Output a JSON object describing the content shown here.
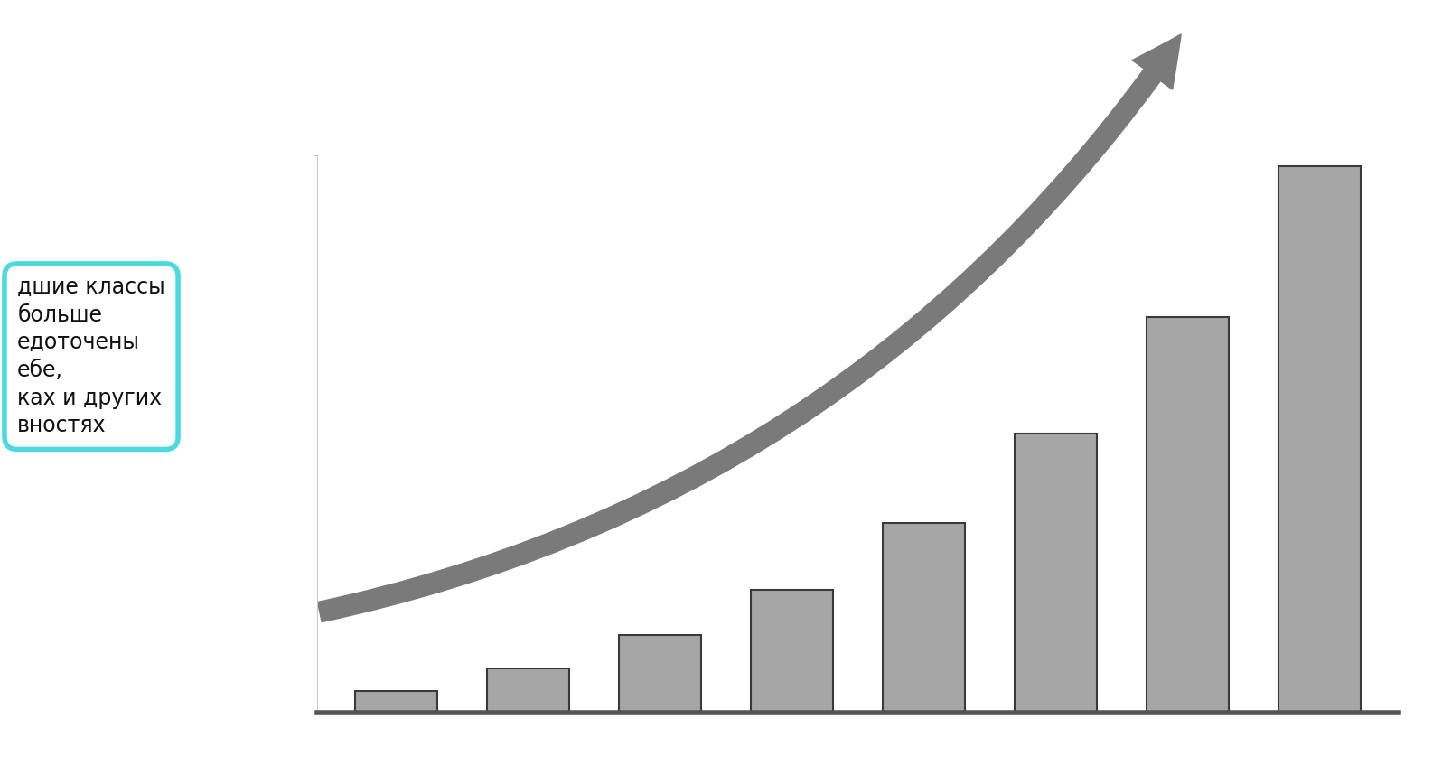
{
  "chart_data": {
    "type": "bar",
    "categories": [
      null,
      null,
      null,
      null,
      null,
      null,
      null,
      null
    ],
    "values": [
      4,
      8,
      14,
      22,
      34,
      50,
      71,
      98
    ],
    "color": "#a6a6a6",
    "ylim": [
      0,
      100
    ],
    "yticks": [
      0,
      100
    ],
    "tick_labels": false,
    "annotations": [
      "дшие классы\nбольше\nедоточены\nебе,\nках и других\nвностях"
    ]
  }
}
